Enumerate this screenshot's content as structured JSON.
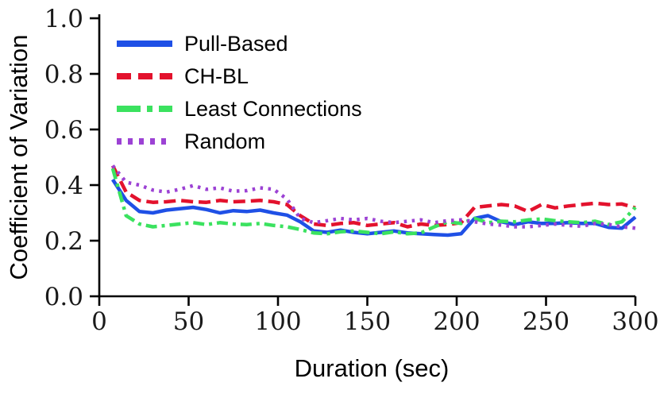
{
  "chart_data": {
    "type": "line",
    "title": "",
    "xlabel": "Duration (sec)",
    "ylabel": "Coefficient of Variation",
    "xlim": [
      0,
      300
    ],
    "ylim": [
      0.0,
      1.0
    ],
    "x_ticks": [
      0,
      50,
      100,
      150,
      200,
      250,
      300
    ],
    "y_ticks": [
      "0.0",
      "0.2",
      "0.4",
      "0.6",
      "0.8",
      "1.0"
    ],
    "y_tick_values": [
      0.0,
      0.2,
      0.4,
      0.6,
      0.8,
      1.0
    ],
    "grid": false,
    "legend_position": "upper-left-inside",
    "axis_color": "#000000",
    "background_color": "#ffffff",
    "x": [
      7.5,
      15,
      22.5,
      30,
      37.5,
      45,
      52.5,
      60,
      67.5,
      75,
      82.5,
      90,
      97.5,
      105,
      112.5,
      120,
      127.5,
      135,
      142.5,
      150,
      157.5,
      165,
      172.5,
      180,
      187.5,
      195,
      202.5,
      210,
      217.5,
      225,
      232.5,
      240,
      247.5,
      255,
      262.5,
      270,
      277.5,
      285,
      292.5,
      300
    ],
    "series": [
      {
        "name": "Pull-Based",
        "color": "#1f50e6",
        "style": "solid",
        "values": [
          0.42,
          0.345,
          0.305,
          0.3,
          0.31,
          0.315,
          0.32,
          0.312,
          0.3,
          0.308,
          0.305,
          0.31,
          0.3,
          0.292,
          0.268,
          0.235,
          0.23,
          0.238,
          0.23,
          0.225,
          0.23,
          0.235,
          0.228,
          0.225,
          0.222,
          0.22,
          0.225,
          0.28,
          0.29,
          0.268,
          0.258,
          0.268,
          0.262,
          0.262,
          0.265,
          0.262,
          0.262,
          0.248,
          0.245,
          0.285
        ]
      },
      {
        "name": "CH-BL",
        "color": "#e3122d",
        "style": "dashed",
        "values": [
          0.47,
          0.375,
          0.345,
          0.338,
          0.34,
          0.345,
          0.34,
          0.338,
          0.345,
          0.34,
          0.342,
          0.345,
          0.34,
          0.33,
          0.29,
          0.26,
          0.255,
          0.262,
          0.265,
          0.255,
          0.26,
          0.265,
          0.25,
          0.26,
          0.255,
          0.258,
          0.265,
          0.32,
          0.325,
          0.33,
          0.325,
          0.305,
          0.33,
          0.318,
          0.325,
          0.33,
          0.335,
          0.33,
          0.332,
          0.318
        ]
      },
      {
        "name": "Least Connections",
        "color": "#3be25f",
        "style": "dash-dot",
        "values": [
          0.46,
          0.29,
          0.26,
          0.25,
          0.255,
          0.26,
          0.265,
          0.258,
          0.265,
          0.26,
          0.258,
          0.262,
          0.255,
          0.25,
          0.24,
          0.228,
          0.225,
          0.232,
          0.235,
          0.23,
          0.225,
          0.232,
          0.225,
          0.228,
          0.25,
          0.268,
          0.262,
          0.28,
          0.265,
          0.27,
          0.268,
          0.275,
          0.278,
          0.272,
          0.268,
          0.265,
          0.27,
          0.258,
          0.268,
          0.32
        ]
      },
      {
        "name": "Random",
        "color": "#9c42d4",
        "style": "dotted",
        "values": [
          0.47,
          0.41,
          0.4,
          0.382,
          0.375,
          0.385,
          0.398,
          0.385,
          0.39,
          0.378,
          0.38,
          0.39,
          0.385,
          0.35,
          0.28,
          0.265,
          0.272,
          0.28,
          0.275,
          0.28,
          0.27,
          0.265,
          0.27,
          0.275,
          0.265,
          0.272,
          0.275,
          0.268,
          0.26,
          0.256,
          0.25,
          0.25,
          0.255,
          0.26,
          0.255,
          0.252,
          0.262,
          0.258,
          0.25,
          0.245
        ]
      }
    ]
  }
}
